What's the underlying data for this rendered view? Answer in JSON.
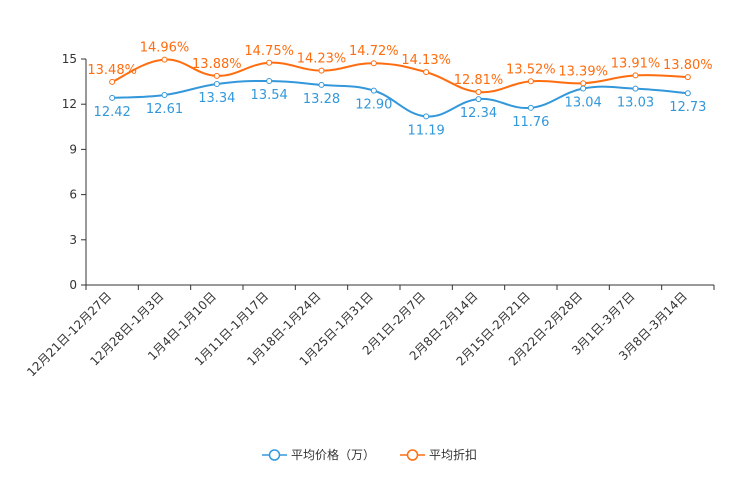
{
  "chart_data": {
    "type": "line",
    "categories": [
      "12月21日-12月27日",
      "12月28日-1月3日",
      "1月4日-1月10日",
      "1月11日-1月17日",
      "1月18日-1月24日",
      "1月25日-1月31日",
      "2月1日-2月7日",
      "2月8日-2月14日",
      "2月15日-2月21日",
      "2月22日-2月28日",
      "3月1日-3月7日",
      "3月8日-3月14日"
    ],
    "series": [
      {
        "name": "平均价格（万）",
        "color": "#3398db",
        "values": [
          12.42,
          12.61,
          13.34,
          13.54,
          13.28,
          12.9,
          11.19,
          12.34,
          11.76,
          13.04,
          13.03,
          12.73
        ],
        "labels": [
          "12.42",
          "12.61",
          "13.34",
          "13.54",
          "13.28",
          "12.90",
          "11.19",
          "12.34",
          "11.76",
          "13.04",
          "13.03",
          "12.73"
        ]
      },
      {
        "name": "平均折扣",
        "color": "#ff6d0f",
        "values": [
          13.48,
          14.96,
          13.88,
          14.75,
          14.23,
          14.72,
          14.13,
          12.81,
          13.52,
          13.39,
          13.91,
          13.8
        ],
        "labels": [
          "13.48%",
          "14.96%",
          "13.88%",
          "14.75%",
          "14.23%",
          "14.72%",
          "14.13%",
          "12.81%",
          "13.52%",
          "13.39%",
          "13.91%",
          "13.80%"
        ]
      }
    ],
    "yticks": [
      "0",
      "3",
      "6",
      "9",
      "12",
      "15"
    ],
    "ylim": [
      0,
      15
    ],
    "legend": "bottom-center"
  }
}
